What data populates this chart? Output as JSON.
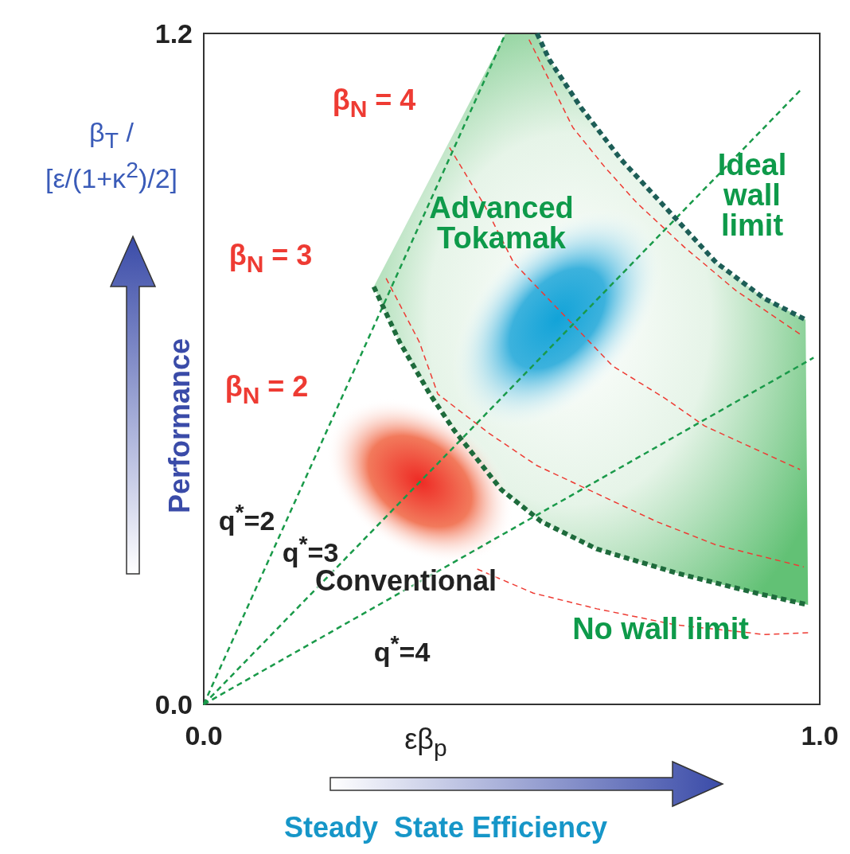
{
  "chart_data": {
    "type": "line",
    "xlabel": "εβ$_{p}$",
    "ylabel": "β$_{T}$ / [ε/(1+κ$^{2}$)/2]",
    "xlim": [
      0,
      1
    ],
    "ylim": [
      0,
      1.2
    ],
    "xticks": [
      {
        "value": 0,
        "label": "0.0"
      },
      {
        "value": 1,
        "label": "1.0"
      }
    ],
    "yticks": [
      {
        "value": 0,
        "label": "0.0"
      },
      {
        "value": 1.2,
        "label": "1.2"
      }
    ],
    "grid": false,
    "marker": "none",
    "line_style": "dashed",
    "series": [
      {
        "color": "#1d5e57",
        "x": [
          0.541,
          0.561,
          0.612,
          0.677,
          0.761,
          0.832,
          0.91,
          0.977
        ],
        "values": [
          1.2,
          1.153,
          1.068,
          0.975,
          0.875,
          0.79,
          0.726,
          0.688
        ]
      },
      {
        "color": "#1e6b3c",
        "x": [
          0.276,
          0.318,
          0.367,
          0.406,
          0.483,
          0.548,
          0.638,
          0.767,
          0.897,
          0.981
        ],
        "values": [
          0.747,
          0.648,
          0.555,
          0.491,
          0.384,
          0.327,
          0.278,
          0.235,
          0.199,
          0.178
        ]
      },
      {
        "color": "#1a9a4a",
        "x": [
          0,
          0.49
        ],
        "values": [
          0,
          1.2
        ]
      },
      {
        "color": "#1a9a4a",
        "x": [
          0,
          0.97
        ],
        "values": [
          0,
          1.1
        ]
      },
      {
        "color": "#1a9a4a",
        "x": [
          0,
          0.99
        ],
        "values": [
          0,
          0.62
        ]
      },
      {
        "color": "#ee3b33",
        "x": [
          0.528,
          0.599,
          0.651,
          0.703,
          0.78,
          0.864,
          0.968
        ],
        "values": [
          1.189,
          1.032,
          0.961,
          0.897,
          0.818,
          0.74,
          0.662
        ]
      },
      {
        "color": "#ee3b33",
        "x": [
          0.399,
          0.457,
          0.503,
          0.664,
          0.748,
          0.813,
          0.968
        ],
        "values": [
          0.996,
          0.89,
          0.79,
          0.605,
          0.548,
          0.498,
          0.42
        ]
      },
      {
        "color": "#ee3b33",
        "x": [
          0.296,
          0.35,
          0.38,
          0.464,
          0.541,
          0.638,
          0.735,
          0.832,
          0.974
        ],
        "values": [
          0.762,
          0.648,
          0.555,
          0.484,
          0.427,
          0.377,
          0.327,
          0.285,
          0.246
        ]
      },
      {
        "color": "#ee3b33",
        "x": [
          0.444,
          0.535,
          0.638,
          0.767,
          0.91,
          0.981
        ],
        "values": [
          0.242,
          0.199,
          0.171,
          0.142,
          0.125,
          0.128
        ]
      }
    ],
    "annotations": [
      "β$_{N}$ = 4",
      "β$_{N}$ = 3",
      "β$_{N}$ = 2",
      "Advanced Tokamak",
      "Ideal wall limit",
      "q$^{*}$=2",
      "q$^{*}$=3",
      "Conventional",
      "q$^{*}$=4",
      "No wall limit",
      "Performance",
      "Steady  State Efficiency"
    ]
  }
}
